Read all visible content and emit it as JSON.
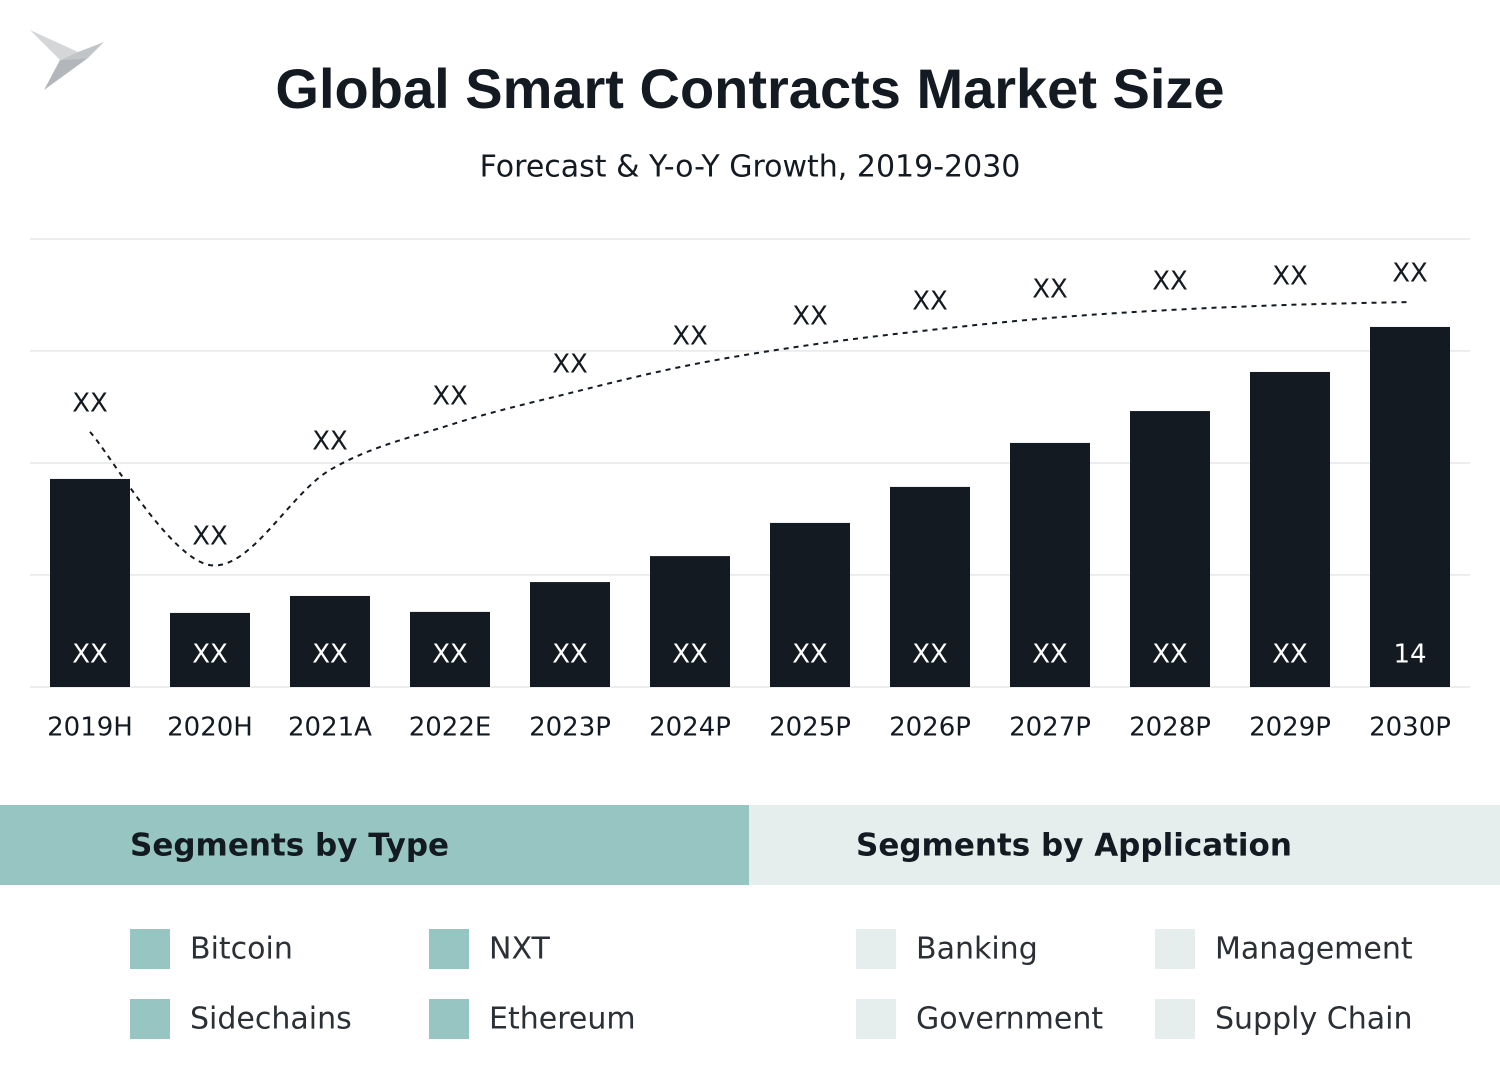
{
  "chart_data": {
    "type": "bar",
    "title": "Global Smart Contracts Market Size",
    "subtitle": "Forecast & Y-o-Y Growth, 2019-2030",
    "categories": [
      "2019H",
      "2020H",
      "2021A",
      "2022E",
      "2023P",
      "2024P",
      "2025P",
      "2026P",
      "2027P",
      "2028P",
      "2029P",
      "2030P"
    ],
    "values": [
      8.09,
      2.88,
      3.54,
      2.92,
      4.08,
      5.09,
      6.38,
      7.78,
      9.49,
      10.73,
      12.25,
      14
    ],
    "value_labels": [
      "XX",
      "XX",
      "XX",
      "XX",
      "XX",
      "XX",
      "XX",
      "XX",
      "XX",
      "XX",
      "XX",
      "14"
    ],
    "color": "#131a21",
    "line": {
      "type": "line",
      "values": [
        9.92,
        4.74,
        8.44,
        10.19,
        11.43,
        12.52,
        13.3,
        13.88,
        14.35,
        14.66,
        14.86,
        14.97
      ],
      "value_labels": [
        "XX",
        "XX",
        "XX",
        "XX",
        "XX",
        "XX",
        "XX",
        "XX",
        "XX",
        "XX",
        "XX",
        "XX"
      ],
      "color": "#131a21",
      "dashed": true
    },
    "ylim": [
      0,
      17.42
    ],
    "yticks": [
      0,
      4.36,
      8.71,
      13.07,
      17.42
    ],
    "grid": true,
    "tick_labels": false
  },
  "segments": [
    {
      "title": "Segments by Type",
      "color": "#97c5c2",
      "items": [
        "Bitcoin",
        "NXT",
        "Sidechains",
        "Ethereum"
      ]
    },
    {
      "title": "Segments by Application",
      "color": "#e5eeed",
      "items": [
        "Banking",
        "Management",
        "Government",
        "Supply Chain"
      ]
    }
  ]
}
